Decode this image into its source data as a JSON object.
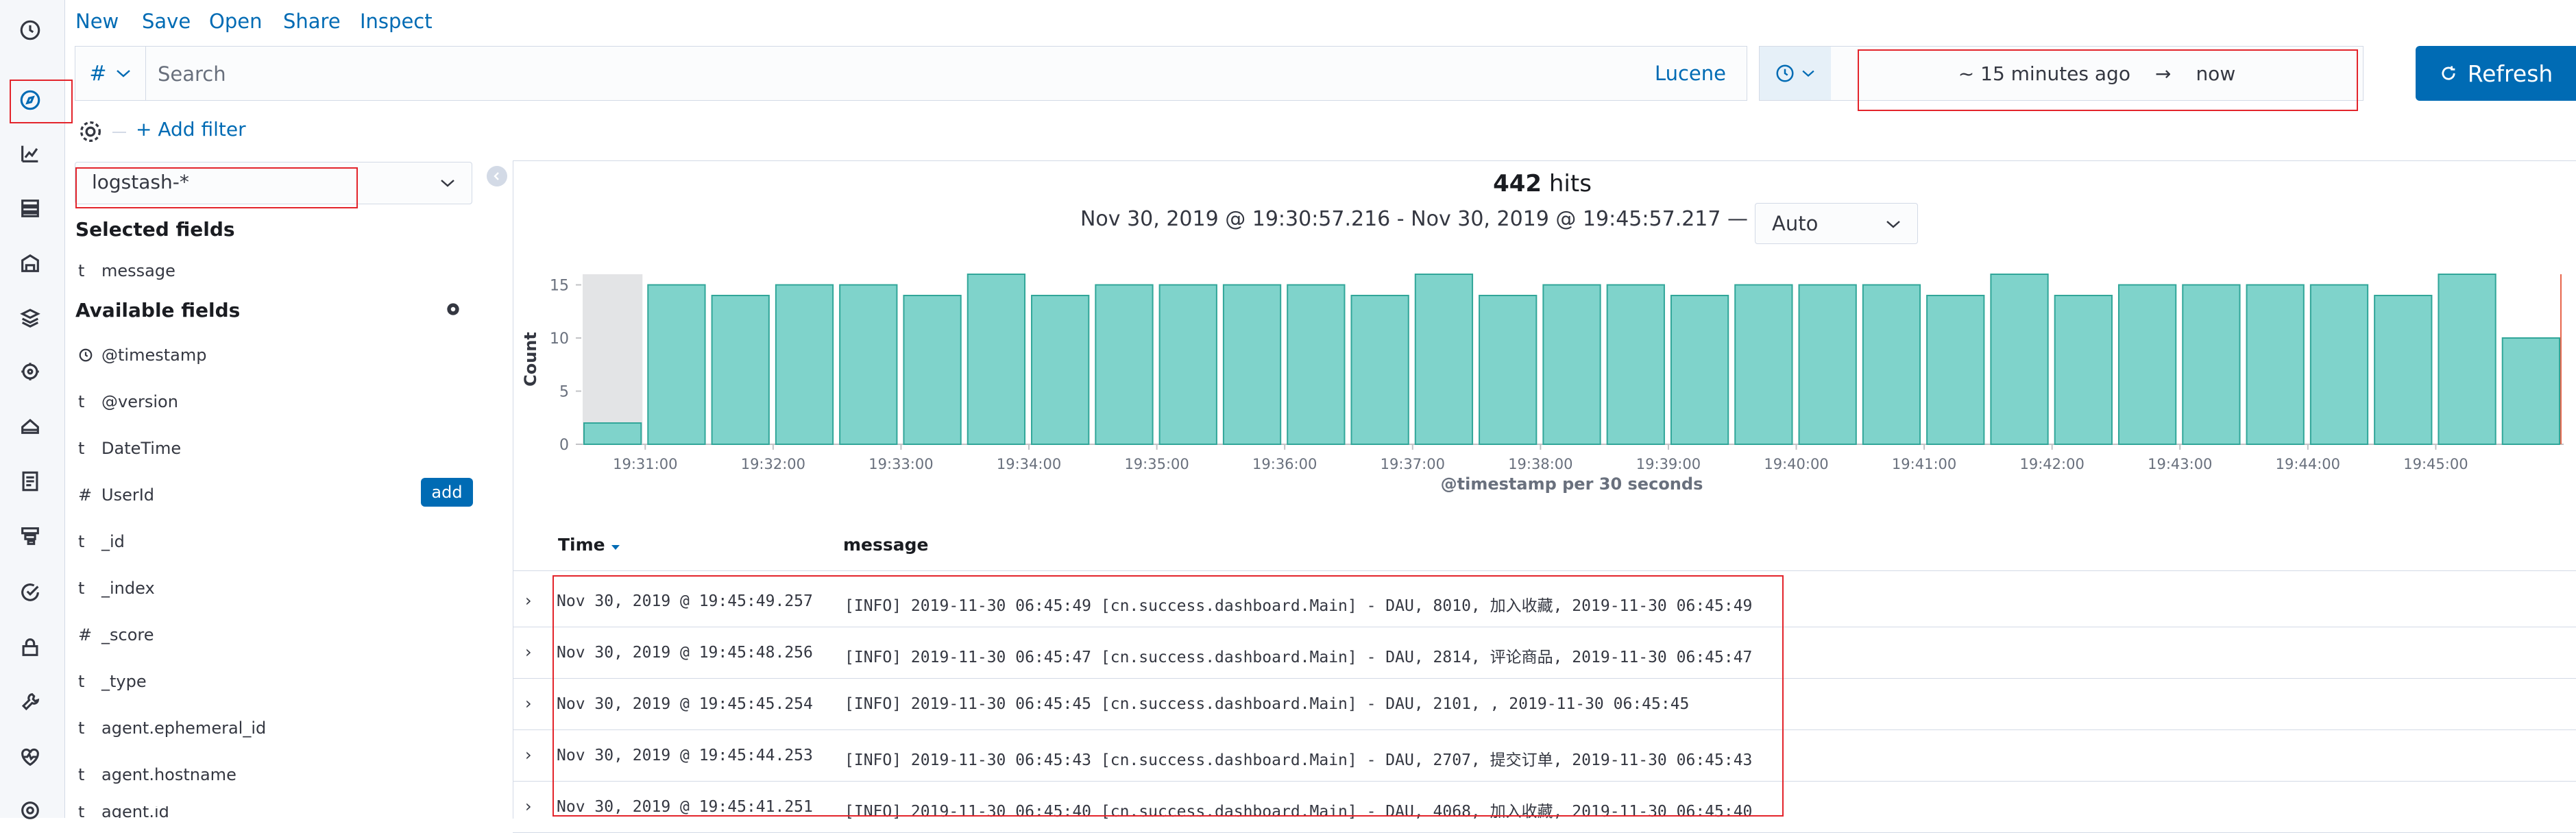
{
  "top_menu": {
    "new": "New",
    "save": "Save",
    "open": "Open",
    "share": "Share",
    "inspect": "Inspect"
  },
  "query": {
    "lang_symbol": "#",
    "placeholder": "Search",
    "language": "Lucene"
  },
  "date_picker": {
    "start": "~ 15 minutes ago",
    "arrow": "→",
    "end": "now"
  },
  "refresh_label": "Refresh",
  "filter": {
    "add_label": "+ Add filter"
  },
  "sidebar": {
    "index_pattern": "logstash-*",
    "selected_heading": "Selected fields",
    "selected_fields": [
      {
        "type": "t",
        "name": "message"
      }
    ],
    "available_heading": "Available fields",
    "available_fields": [
      {
        "type": "clock",
        "name": "@timestamp"
      },
      {
        "type": "t",
        "name": "@version"
      },
      {
        "type": "t",
        "name": "DateTime"
      },
      {
        "type": "#",
        "name": "UserId"
      },
      {
        "type": "t",
        "name": "_id"
      },
      {
        "type": "t",
        "name": "_index"
      },
      {
        "type": "#",
        "name": "_score"
      },
      {
        "type": "t",
        "name": "_type"
      },
      {
        "type": "t",
        "name": "agent.ephemeral_id"
      },
      {
        "type": "t",
        "name": "agent.hostname"
      },
      {
        "type": "t",
        "name": "agent.id"
      }
    ],
    "add_button": "add"
  },
  "summary": {
    "hits_count": "442",
    "hits_label": "hits",
    "range": "Nov 30, 2019 @ 19:30:57.216 - Nov 30, 2019 @ 19:45:57.217 —",
    "interval": "Auto"
  },
  "chart_data": {
    "type": "bar",
    "categories": [
      "19:30:30",
      "19:31:00",
      "19:31:30",
      "19:32:00",
      "19:32:30",
      "19:33:00",
      "19:33:30",
      "19:34:00",
      "19:34:30",
      "19:35:00",
      "19:35:30",
      "19:36:00",
      "19:36:30",
      "19:37:00",
      "19:37:30",
      "19:38:00",
      "19:38:30",
      "19:39:00",
      "19:39:30",
      "19:40:00",
      "19:40:30",
      "19:41:00",
      "19:41:30",
      "19:42:00",
      "19:42:30",
      "19:43:00",
      "19:43:30",
      "19:44:00",
      "19:44:30",
      "19:45:00",
      "19:45:30"
    ],
    "values": [
      2,
      15,
      14,
      15,
      15,
      14,
      16,
      14,
      15,
      15,
      15,
      15,
      14,
      16,
      14,
      15,
      15,
      14,
      15,
      15,
      15,
      14,
      16,
      14,
      15,
      15,
      15,
      15,
      14,
      16,
      10
    ],
    "tick_labels": [
      "19:31:00",
      "19:32:00",
      "19:33:00",
      "19:34:00",
      "19:35:00",
      "19:36:00",
      "19:37:00",
      "19:38:00",
      "19:39:00",
      "19:40:00",
      "19:41:00",
      "19:42:00",
      "19:43:00",
      "19:44:00",
      "19:45:00"
    ],
    "yticks": [
      "0",
      "5",
      "10",
      "15"
    ],
    "ylim": [
      0,
      16
    ],
    "ylabel": "Count",
    "xlabel": "@timestamp per 30 seconds",
    "bar_color": "#7fd3cb",
    "bar_stroke": "#31a699"
  },
  "table": {
    "headers": {
      "time": "Time",
      "message": "message"
    },
    "rows": [
      {
        "time": "Nov 30, 2019 @ 19:45:49.257",
        "message": "[INFO] 2019-11-30 06:45:49 [cn.success.dashboard.Main] - DAU, 8010, 加入收藏, 2019-11-30 06:45:49"
      },
      {
        "time": "Nov 30, 2019 @ 19:45:48.256",
        "message": "[INFO] 2019-11-30 06:45:47 [cn.success.dashboard.Main] - DAU, 2814, 评论商品, 2019-11-30 06:45:47"
      },
      {
        "time": "Nov 30, 2019 @ 19:45:45.254",
        "message": "[INFO] 2019-11-30 06:45:45 [cn.success.dashboard.Main] - DAU, 2101, , 2019-11-30 06:45:45"
      },
      {
        "time": "Nov 30, 2019 @ 19:45:44.253",
        "message": "[INFO] 2019-11-30 06:45:43 [cn.success.dashboard.Main] - DAU, 2707, 提交订单, 2019-11-30 06:45:43"
      },
      {
        "time": "Nov 30, 2019 @ 19:45:41.251",
        "message": "[INFO] 2019-11-30 06:45:40 [cn.success.dashboard.Main] - DAU, 4068, 加入收藏, 2019-11-30 06:45:40"
      }
    ]
  },
  "colors": {
    "accent": "#006bb4",
    "highlight": "#e3242b"
  }
}
